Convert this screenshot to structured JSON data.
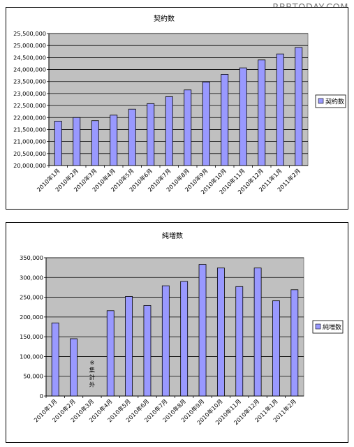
{
  "watermark": "RBBTODAY.COM",
  "colors": {
    "bar": "#9999ff",
    "bar_stroke": "#000000",
    "plot_bg": "#c0c0c0",
    "grid": "#000000"
  },
  "chart_data": [
    {
      "type": "bar",
      "title": "契約数",
      "categories": [
        "2010年1月",
        "2010年2月",
        "2010年3月",
        "2010年4月",
        "2010年5月",
        "2010年6月",
        "2010年7月",
        "2010年8月",
        "2010年9月",
        "2010年10月",
        "2010年11月",
        "2010年12月",
        "2011年1月",
        "2011年2月"
      ],
      "series": [
        {
          "name": "契約数",
          "values": [
            21850000,
            22000000,
            21870000,
            22100000,
            22350000,
            22580000,
            22870000,
            23150000,
            23480000,
            23800000,
            24070000,
            24400000,
            24650000,
            24920000
          ]
        }
      ],
      "ylim": [
        20000000,
        25500000
      ],
      "yticks": [
        20000000,
        20500000,
        21000000,
        21500000,
        22000000,
        22500000,
        23000000,
        23500000,
        24000000,
        24500000,
        25000000,
        25500000
      ],
      "ytick_labels": [
        "20,000,000",
        "20,500,000",
        "21,000,000",
        "21,500,000",
        "22,000,000",
        "22,500,000",
        "23,000,000",
        "23,500,000",
        "24,000,000",
        "24,500,000",
        "25,000,000",
        "25,500,000"
      ],
      "grid": true,
      "legend": "right"
    },
    {
      "type": "bar",
      "title": "純増数",
      "categories": [
        "2010年1月",
        "2010年2月",
        "2010年3月",
        "2010年4月",
        "2010年5月",
        "2010年6月",
        "2010年7月",
        "2010年8月",
        "2010年9月",
        "2010年10月",
        "2010年11月",
        "2010年12月",
        "2011年1月",
        "2011年2月"
      ],
      "series": [
        {
          "name": "純増数",
          "values": [
            185000,
            145000,
            null,
            216000,
            252000,
            229000,
            279000,
            290000,
            333000,
            324000,
            277000,
            324000,
            241000,
            269000
          ]
        }
      ],
      "ylim": [
        0,
        350000
      ],
      "yticks": [
        0,
        50000,
        100000,
        150000,
        200000,
        250000,
        300000,
        350000
      ],
      "ytick_labels": [
        "0",
        "50,000",
        "100,000",
        "150,000",
        "200,000",
        "250,000",
        "300,000",
        "350,000"
      ],
      "grid": true,
      "legend": "right",
      "annotations": [
        {
          "category": "2010年3月",
          "text": "※集計外"
        }
      ]
    }
  ]
}
